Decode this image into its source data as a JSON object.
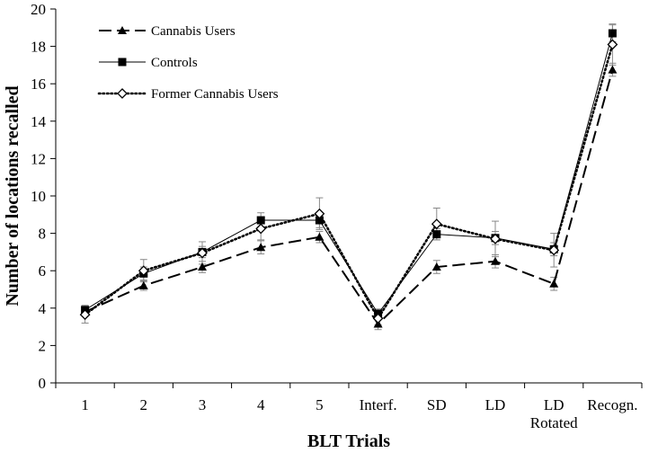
{
  "chart_data": {
    "type": "line",
    "title": "",
    "xlabel": "BLT Trials",
    "ylabel": "Number of locations recalled",
    "categories": [
      "1",
      "2",
      "3",
      "4",
      "5",
      "Interf.",
      "SD",
      "LD",
      "LD Rotated",
      "Recogn."
    ],
    "category_lines": [
      [
        "1"
      ],
      [
        "2"
      ],
      [
        "3"
      ],
      [
        "4"
      ],
      [
        "5"
      ],
      [
        "Interf."
      ],
      [
        "SD"
      ],
      [
        "LD"
      ],
      [
        "LD",
        "Rotated"
      ],
      [
        "Recogn."
      ]
    ],
    "ylim": [
      0,
      20
    ],
    "yticks": [
      "0",
      "2",
      "4",
      "6",
      "8",
      "10",
      "12",
      "14",
      "16",
      "18",
      "20"
    ],
    "grid": false,
    "legend_position": "top-left",
    "series": [
      {
        "name": "Cannabis Users",
        "marker": "triangle",
        "line_style": "dashed",
        "values": [
          3.8,
          5.2,
          6.2,
          7.25,
          7.8,
          3.15,
          6.2,
          6.5,
          5.3,
          16.75
        ],
        "errors": [
          0.15,
          0.25,
          0.3,
          0.35,
          0.3,
          0.3,
          0.35,
          0.35,
          0.35,
          0.35
        ]
      },
      {
        "name": "Controls",
        "marker": "square",
        "line_style": "solid",
        "values": [
          3.9,
          5.85,
          7.0,
          8.7,
          8.7,
          3.7,
          7.95,
          7.75,
          7.15,
          18.7
        ],
        "errors": [
          0.25,
          0.35,
          0.3,
          0.4,
          0.4,
          0.25,
          0.3,
          0.35,
          0.35,
          0.45
        ]
      },
      {
        "name": "Former Cannabis Users",
        "marker": "diamond",
        "line_style": "dotted",
        "values": [
          3.65,
          6.0,
          6.95,
          8.25,
          9.05,
          3.45,
          8.5,
          7.7,
          7.1,
          18.1
        ],
        "errors": [
          0.45,
          0.6,
          0.6,
          0.6,
          0.85,
          0.35,
          0.85,
          0.95,
          0.9,
          1.1
        ]
      }
    ]
  }
}
